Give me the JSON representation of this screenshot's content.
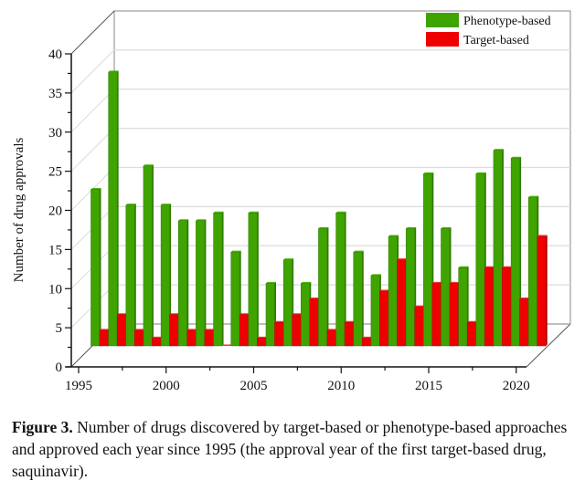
{
  "chart_data": {
    "type": "bar",
    "style": "3d-grouped",
    "title": "",
    "xlabel": "",
    "ylabel": "Number of drug approvals",
    "ylim": [
      0,
      40
    ],
    "yticks": [
      0,
      5,
      10,
      15,
      20,
      25,
      30,
      35,
      40
    ],
    "xlim": [
      1995,
      2021
    ],
    "xticks": [
      1995,
      2000,
      2005,
      2010,
      2015,
      2020
    ],
    "grid": true,
    "legend_position": "top-right",
    "categories": [
      1995,
      1996,
      1997,
      1998,
      1999,
      2000,
      2001,
      2002,
      2003,
      2004,
      2005,
      2006,
      2007,
      2008,
      2009,
      2010,
      2011,
      2012,
      2013,
      2014,
      2015,
      2016,
      2017,
      2018,
      2019,
      2020
    ],
    "series": [
      {
        "name": "Phenotype-based",
        "color": "#3fa300",
        "values": [
          20,
          35,
          18,
          23,
          18,
          16,
          16,
          17,
          12,
          17,
          8,
          11,
          8,
          15,
          17,
          12,
          9,
          14,
          15,
          22,
          15,
          10,
          22,
          25,
          24,
          19
        ]
      },
      {
        "name": "Target-based",
        "color": "#ee0000",
        "values": [
          2,
          4,
          2,
          1,
          4,
          2,
          2,
          0,
          4,
          1,
          3,
          4,
          6,
          2,
          3,
          1,
          7,
          11,
          5,
          8,
          8,
          3,
          10,
          10,
          6,
          14
        ]
      }
    ]
  },
  "caption": {
    "label": "Figure 3.",
    "text": " Number of drugs discovered by target-based or phenotype-based approaches and approved each year since 1995 (the approval year of the first target-based drug, saquinavir)."
  }
}
